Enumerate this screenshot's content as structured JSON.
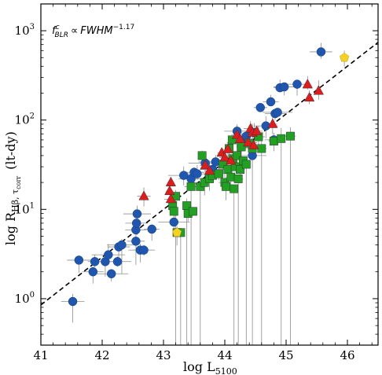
{
  "chart_data": {
    "type": "scatter",
    "title": "",
    "xlabel": "log L",
    "xlabel_sub": "5100",
    "ylabel": "log  R",
    "ylabel_sub": "Hβ, τ",
    "ylabel_subsub": "corr",
    "ylabel_unit": "(lt-dy)",
    "annotation": {
      "f": "f",
      "f_sup": "c",
      "f_sub": "BLR",
      "rel": "∝",
      "rhs": "FWHM",
      "exp": "−1.17"
    },
    "xlim": [
      41.0,
      46.5
    ],
    "ylim_log10": [
      -0.52,
      3.3
    ],
    "y_scale": "log",
    "x_ticks": [
      41,
      42,
      43,
      44,
      45,
      46
    ],
    "x_tick_labels": [
      "41",
      "42",
      "43",
      "44",
      "45",
      "46"
    ],
    "y_tick_exps": [
      0,
      1,
      2,
      3
    ],
    "y_tick_base": "10",
    "y_tick_exp_labels": [
      "0",
      "1",
      "2",
      "3"
    ],
    "fit_line": {
      "style": "dashed",
      "color": "#000000",
      "x": [
        41.0,
        46.5
      ],
      "log_y": [
        -0.07,
        2.87
      ]
    },
    "colors": {
      "blue": "#1f57b0",
      "red": "#e31a1c",
      "green": "#21a121",
      "yellow": "#f7d11e",
      "errorbar": "#8c8c8c"
    },
    "series": [
      {
        "marker": "circle",
        "color": "#1f57b0",
        "points": [
          {
            "x": 41.52,
            "y": 0.93
          },
          {
            "x": 41.62,
            "y": 2.7
          },
          {
            "x": 41.85,
            "y": 2.0
          },
          {
            "x": 41.88,
            "y": 2.6
          },
          {
            "x": 42.05,
            "y": 2.6
          },
          {
            "x": 42.1,
            "y": 3.1
          },
          {
            "x": 42.15,
            "y": 1.9
          },
          {
            "x": 42.25,
            "y": 2.6
          },
          {
            "x": 42.27,
            "y": 3.8
          },
          {
            "x": 42.32,
            "y": 4.0
          },
          {
            "x": 42.55,
            "y": 4.4
          },
          {
            "x": 42.55,
            "y": 5.9
          },
          {
            "x": 42.56,
            "y": 7.0
          },
          {
            "x": 42.57,
            "y": 8.9
          },
          {
            "x": 42.62,
            "y": 3.5
          },
          {
            "x": 42.68,
            "y": 3.5
          },
          {
            "x": 42.81,
            "y": 6.0
          },
          {
            "x": 43.17,
            "y": 7.2
          },
          {
            "x": 43.33,
            "y": 24
          },
          {
            "x": 43.45,
            "y": 22
          },
          {
            "x": 43.5,
            "y": 26
          },
          {
            "x": 43.55,
            "y": 25
          },
          {
            "x": 43.68,
            "y": 33
          },
          {
            "x": 43.8,
            "y": 28
          },
          {
            "x": 43.85,
            "y": 34
          },
          {
            "x": 44.2,
            "y": 75
          },
          {
            "x": 44.28,
            "y": 56
          },
          {
            "x": 44.35,
            "y": 66
          },
          {
            "x": 44.45,
            "y": 40
          },
          {
            "x": 44.48,
            "y": 72
          },
          {
            "x": 44.58,
            "y": 138
          },
          {
            "x": 44.67,
            "y": 86
          },
          {
            "x": 44.75,
            "y": 160
          },
          {
            "x": 44.8,
            "y": 60
          },
          {
            "x": 44.82,
            "y": 118
          },
          {
            "x": 44.86,
            "y": 122
          },
          {
            "x": 44.9,
            "y": 230
          },
          {
            "x": 44.97,
            "y": 235
          },
          {
            "x": 45.18,
            "y": 252
          },
          {
            "x": 45.57,
            "y": 580
          }
        ]
      },
      {
        "marker": "triangle",
        "color": "#e31a1c",
        "points": [
          {
            "x": 42.68,
            "y": 14
          },
          {
            "x": 43.1,
            "y": 16
          },
          {
            "x": 43.12,
            "y": 13
          },
          {
            "x": 43.12,
            "y": 20
          },
          {
            "x": 43.68,
            "y": 31
          },
          {
            "x": 43.75,
            "y": 27
          },
          {
            "x": 43.95,
            "y": 43
          },
          {
            "x": 44.0,
            "y": 38
          },
          {
            "x": 44.05,
            "y": 47
          },
          {
            "x": 44.1,
            "y": 35
          },
          {
            "x": 44.2,
            "y": 68
          },
          {
            "x": 44.25,
            "y": 61
          },
          {
            "x": 44.38,
            "y": 56
          },
          {
            "x": 44.42,
            "y": 80
          },
          {
            "x": 44.45,
            "y": 72
          },
          {
            "x": 44.47,
            "y": 52
          },
          {
            "x": 44.52,
            "y": 75
          },
          {
            "x": 44.78,
            "y": 90
          },
          {
            "x": 45.35,
            "y": 250
          },
          {
            "x": 45.38,
            "y": 178
          },
          {
            "x": 45.53,
            "y": 212
          }
        ]
      },
      {
        "marker": "square",
        "color": "#21a121",
        "points": [
          {
            "x": 43.15,
            "y": 11
          },
          {
            "x": 43.17,
            "y": 9.5
          },
          {
            "x": 43.2,
            "y": 14
          },
          {
            "x": 43.22,
            "y": 5.5
          },
          {
            "x": 43.28,
            "y": 5.5
          },
          {
            "x": 43.38,
            "y": 11
          },
          {
            "x": 43.4,
            "y": 9.0
          },
          {
            "x": 43.45,
            "y": 18
          },
          {
            "x": 43.48,
            "y": 9.5
          },
          {
            "x": 43.6,
            "y": 18
          },
          {
            "x": 43.63,
            "y": 40
          },
          {
            "x": 43.67,
            "y": 20
          },
          {
            "x": 43.75,
            "y": 22
          },
          {
            "x": 43.8,
            "y": 24
          },
          {
            "x": 43.9,
            "y": 25
          },
          {
            "x": 43.97,
            "y": 32
          },
          {
            "x": 44.0,
            "y": 20
          },
          {
            "x": 44.02,
            "y": 18
          },
          {
            "x": 44.05,
            "y": 28
          },
          {
            "x": 44.07,
            "y": 48
          },
          {
            "x": 44.1,
            "y": 23
          },
          {
            "x": 44.12,
            "y": 60
          },
          {
            "x": 44.13,
            "y": 37
          },
          {
            "x": 44.15,
            "y": 17
          },
          {
            "x": 44.17,
            "y": 30
          },
          {
            "x": 44.2,
            "y": 40
          },
          {
            "x": 44.22,
            "y": 22
          },
          {
            "x": 44.25,
            "y": 28
          },
          {
            "x": 44.27,
            "y": 50
          },
          {
            "x": 44.3,
            "y": 35
          },
          {
            "x": 44.35,
            "y": 32
          },
          {
            "x": 44.4,
            "y": 55
          },
          {
            "x": 44.45,
            "y": 48
          },
          {
            "x": 44.55,
            "y": 65
          },
          {
            "x": 44.6,
            "y": 48
          },
          {
            "x": 44.8,
            "y": 58
          },
          {
            "x": 44.92,
            "y": 62
          },
          {
            "x": 45.07,
            "y": 66
          }
        ]
      },
      {
        "marker": "pentagon",
        "color": "#f7d11e",
        "points": [
          {
            "x": 43.22,
            "y": 5.5
          },
          {
            "x": 45.95,
            "y": 500
          }
        ]
      }
    ]
  }
}
